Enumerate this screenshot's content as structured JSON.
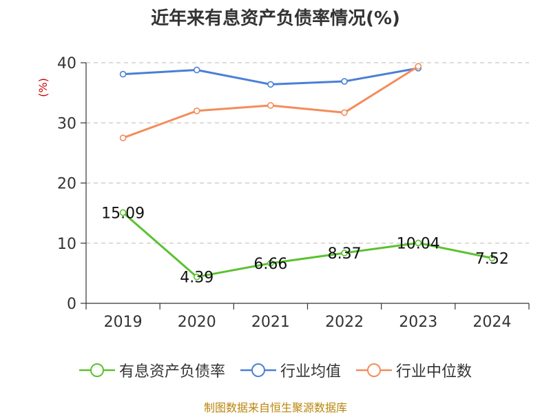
{
  "chart_data": {
    "type": "line",
    "title": "近年来有息资产负债率情况(%)",
    "ylabel": "(%)",
    "categories": [
      "2019",
      "2020",
      "2021",
      "2022",
      "2023",
      "2024"
    ],
    "ylim": [
      0,
      40
    ],
    "yticks": [
      0,
      10,
      20,
      30,
      40
    ],
    "grid": true,
    "legend_position": "bottom",
    "series": [
      {
        "name": "有息资产负债率",
        "color": "#5bc12f",
        "values": [
          15.09,
          4.39,
          6.66,
          8.37,
          10.04,
          7.52
        ],
        "labels": [
          "15.09",
          "4.39",
          "6.66",
          "8.37",
          "10.04",
          "7.52"
        ]
      },
      {
        "name": "行业均值",
        "color": "#4a7fd6",
        "values": [
          38.1,
          38.8,
          36.4,
          36.9,
          39.1,
          null
        ]
      },
      {
        "name": "行业中位数",
        "color": "#f48c5a",
        "values": [
          27.5,
          32.0,
          32.9,
          31.7,
          39.4,
          null
        ]
      }
    ]
  },
  "source": "制图数据来自恒生聚源数据库"
}
